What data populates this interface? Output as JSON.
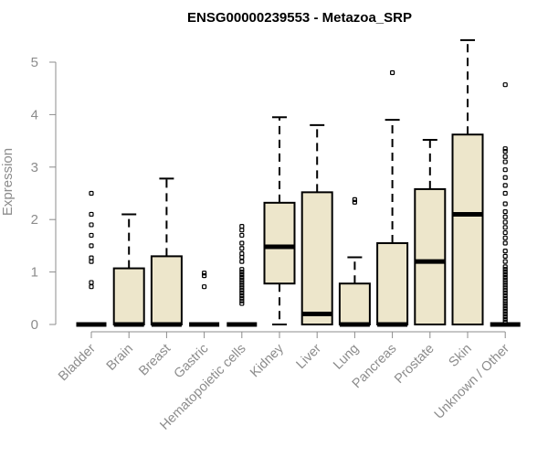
{
  "chart_data": {
    "type": "boxplot",
    "title": "ENSG00000239553 - Metazoa_SRP",
    "xlabel": "",
    "ylabel": "Expression",
    "ylim": [
      0,
      5.5
    ],
    "yticks": [
      0,
      1,
      2,
      3,
      4,
      5
    ],
    "colors": {
      "box_fill": "#ede6cb",
      "axis": "#8c8c8c",
      "ink": "#000000"
    },
    "categories": [
      "Bladder",
      "Brain",
      "Breast",
      "Gastric",
      "Hematopoietic cells",
      "Kidney",
      "Liver",
      "Lung",
      "Pancreas",
      "Prostate",
      "Skin",
      "Unknown / Other"
    ],
    "boxes": [
      {
        "name": "Bladder",
        "q1": 0,
        "median": 0,
        "q3": 0,
        "whisker_low": 0,
        "whisker_high": 0,
        "outliers": [
          0.72,
          0.8,
          1.2,
          1.27,
          1.5,
          1.7,
          1.9,
          2.1,
          2.5
        ]
      },
      {
        "name": "Brain",
        "q1": 0,
        "median": 0,
        "q3": 1.07,
        "whisker_low": 0,
        "whisker_high": 2.1,
        "outliers": []
      },
      {
        "name": "Breast",
        "q1": 0,
        "median": 0,
        "q3": 1.3,
        "whisker_low": 0,
        "whisker_high": 2.78,
        "outliers": []
      },
      {
        "name": "Gastric",
        "q1": 0,
        "median": 0,
        "q3": 0,
        "whisker_low": 0,
        "whisker_high": 0,
        "outliers": [
          0.72,
          0.93,
          0.98
        ]
      },
      {
        "name": "Hematopoietic cells",
        "q1": 0,
        "median": 0,
        "q3": 0,
        "whisker_low": 0,
        "whisker_high": 0,
        "outliers": [
          0.4,
          0.45,
          0.5,
          0.55,
          0.6,
          0.65,
          0.7,
          0.75,
          0.8,
          0.85,
          0.9,
          0.95,
          1.0,
          1.05,
          1.2,
          1.28,
          1.35,
          1.45,
          1.55,
          1.7,
          1.8,
          1.87
        ]
      },
      {
        "name": "Kidney",
        "q1": 0.78,
        "median": 1.48,
        "q3": 2.32,
        "whisker_low": 0,
        "whisker_high": 3.95,
        "outliers": []
      },
      {
        "name": "Liver",
        "q1": 0,
        "median": 0.2,
        "q3": 2.52,
        "whisker_low": 0,
        "whisker_high": 3.8,
        "outliers": []
      },
      {
        "name": "Lung",
        "q1": 0,
        "median": 0,
        "q3": 0.78,
        "whisker_low": 0,
        "whisker_high": 1.28,
        "outliers": [
          2.33,
          2.38
        ]
      },
      {
        "name": "Pancreas",
        "q1": 0,
        "median": 0,
        "q3": 1.55,
        "whisker_low": 0,
        "whisker_high": 3.9,
        "outliers": [
          4.8
        ]
      },
      {
        "name": "Prostate",
        "q1": 0,
        "median": 1.2,
        "q3": 2.58,
        "whisker_low": 0,
        "whisker_high": 3.52,
        "outliers": []
      },
      {
        "name": "Skin",
        "q1": 0,
        "median": 2.1,
        "q3": 3.62,
        "whisker_low": 0,
        "whisker_high": 5.42,
        "outliers": []
      },
      {
        "name": "Unknown / Other",
        "q1": 0,
        "median": 0,
        "q3": 0,
        "whisker_low": 0,
        "whisker_high": 0,
        "outliers": [
          0.05,
          0.1,
          0.15,
          0.2,
          0.25,
          0.3,
          0.35,
          0.4,
          0.45,
          0.5,
          0.55,
          0.6,
          0.65,
          0.7,
          0.75,
          0.8,
          0.85,
          0.9,
          0.95,
          1.0,
          1.05,
          1.1,
          1.2,
          1.3,
          1.4,
          1.55,
          1.65,
          1.75,
          1.85,
          1.95,
          2.05,
          2.15,
          2.3,
          2.5,
          2.65,
          2.8,
          2.95,
          3.1,
          3.2,
          3.3,
          3.35,
          4.57
        ]
      }
    ]
  }
}
